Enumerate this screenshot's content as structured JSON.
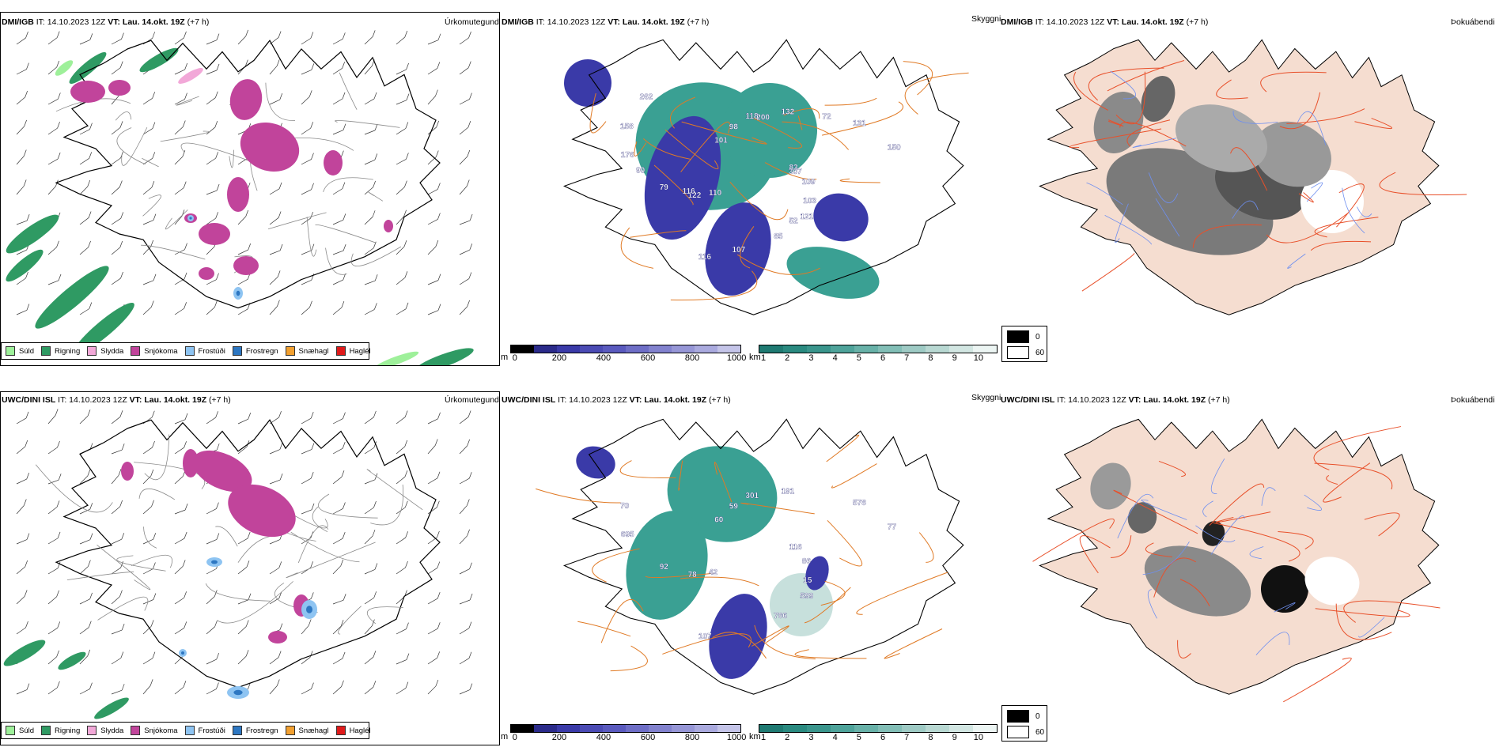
{
  "colors": {
    "sould": "#9ef09a",
    "rigning": "#2f9a63",
    "slydda": "#f2a8d8",
    "snjokoma": "#c1449b",
    "frostudi": "#8ec4f2",
    "frostregn": "#2d77c2",
    "snaehagl": "#f2a030",
    "haglel": "#e01a1a",
    "road": "#e07a25",
    "coast": "#000000",
    "cloud": "#3aa093",
    "cloudhigh": "#3a3aa8",
    "fogland": "#f5ddd0",
    "fogroad": "#e8502a",
    "fogriver": "#6e8ff0"
  },
  "panels": [
    {
      "id": "a1",
      "type": "precip",
      "model": "DMI/IGB",
      "it": "IT: 14.10.2023 12Z",
      "vt": "VT: Lau. 14.okt. 19Z",
      "lead": "(+7 h)",
      "title": "Úrkomutegund"
    },
    {
      "id": "b1",
      "type": "cloud",
      "model": "DMI/IGB",
      "it": "IT: 14.10.2023 12Z",
      "vt": "VT: Lau. 14.okt. 19Z",
      "lead": "(+7 h)",
      "title": "Skyggni",
      "labels": [
        "83",
        "122",
        "118",
        "121",
        "176",
        "131",
        "116",
        "101",
        "109",
        "79",
        "132",
        "85",
        "158",
        "150",
        "110",
        "98",
        "103",
        "90",
        "72",
        "107",
        "262",
        "307",
        "116",
        "200",
        "52"
      ]
    },
    {
      "id": "c1",
      "type": "fog",
      "model": "DMI/IGB",
      "it": "IT: 14.10.2023 12Z",
      "vt": "VT: Lau. 14.okt. 19Z",
      "lead": "(+7 h)",
      "title": "Þokuábendi"
    },
    {
      "id": "a2",
      "type": "precip",
      "model": "UWC/DINI ISL",
      "it": "IT: 14.10.2023 12Z",
      "vt": "VT: Lau. 14.okt. 19Z",
      "lead": "(+7 h)",
      "title": "Úrkomutegund"
    },
    {
      "id": "b2",
      "type": "cloud",
      "model": "UWC/DINI ISL",
      "it": "IT: 14.10.2023 12Z",
      "vt": "VT: Lau. 14.okt. 19Z",
      "lead": "(+7 h)",
      "title": "Skyggni",
      "labels": [
        "116",
        "78",
        "301",
        "599",
        "695",
        "578",
        "107",
        "60",
        "86",
        "92",
        "191",
        "786",
        "70",
        "77",
        "42",
        "59",
        "15"
      ]
    },
    {
      "id": "c2",
      "type": "fog",
      "model": "UWC/DINI ISL",
      "it": "IT: 14.10.2023 12Z",
      "vt": "VT: Lau. 14.okt. 19Z",
      "lead": "(+7 h)",
      "title": "Þokuábendi"
    }
  ],
  "precip_legend": [
    "Súld",
    "Rigning",
    "Slydda",
    "Snjókoma",
    "Frostúði",
    "Frostregn",
    "Snæhagl",
    "Haglél"
  ],
  "cbar_height": {
    "unit": "m",
    "ticks": [
      "0",
      "200",
      "400",
      "600",
      "800",
      "1000"
    ],
    "colors": [
      "#000000",
      "#2b2b8a",
      "#3a3aa8",
      "#4b4bb4",
      "#5a5abe",
      "#6e6ec6",
      "#8282ce",
      "#9696d6",
      "#aaaade",
      "#c4c4e8"
    ]
  },
  "cbar_vis": {
    "unit": "km",
    "ticks": [
      "1",
      "2",
      "3",
      "4",
      "5",
      "6",
      "7",
      "8",
      "9",
      "10"
    ],
    "colors": [
      "#1f7a72",
      "#2a8a80",
      "#3a958c",
      "#4ea39a",
      "#68b1a8",
      "#82beb6",
      "#9ecac4",
      "#b8d8d2",
      "#d2e6e2",
      "#ecf5f3"
    ]
  },
  "fog_legend": [
    {
      "value": "0",
      "color": "#000000"
    },
    {
      "value": "60",
      "color": "#ffffff"
    }
  ]
}
